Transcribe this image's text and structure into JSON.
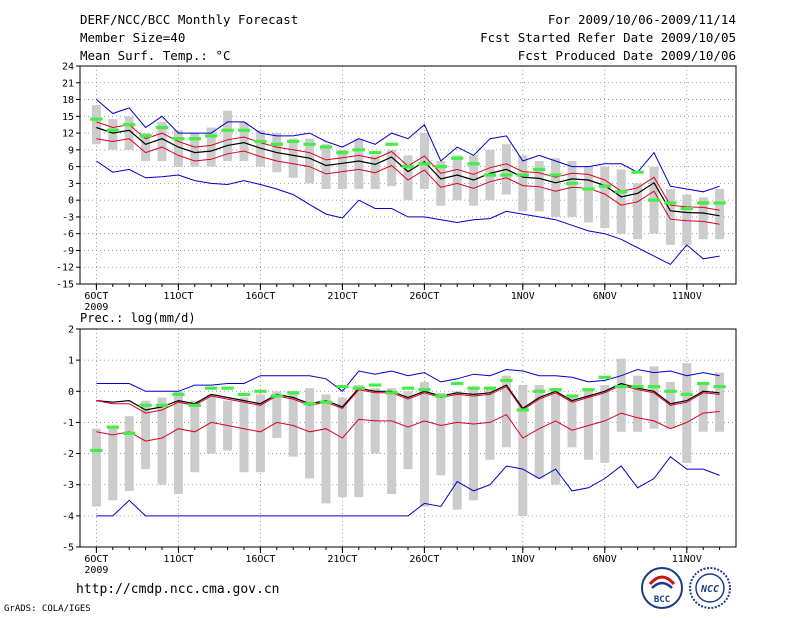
{
  "header": {
    "title": "DERF/NCC/BCC Monthly Forecast",
    "member": "Member Size=40",
    "variable": "Mean Surf. Temp.: °C",
    "period": "For 2009/10/06-2009/11/14",
    "started": "Fcst Started Refer Date 2009/10/05",
    "produced": "Fcst Produced Date 2009/10/06"
  },
  "footer": {
    "url": "http://cmdp.ncc.cma.gov.cn",
    "credit": "GrADS: COLA/IGES",
    "logo_left": "BCC",
    "logo_right": "NCC"
  },
  "colors": {
    "max_line": "#0000cc",
    "mean_line": "#000000",
    "spread_line": "#dd0022",
    "box": "#cccccc",
    "marker": "#44ee44",
    "grid": "#888888"
  },
  "chart_data": [
    {
      "type": "line",
      "name": "temperature",
      "ylabel": "Mean Surf. Temp.: °C",
      "ylim": [
        -15,
        24
      ],
      "yticks": [
        -15,
        -12,
        -9,
        -6,
        -3,
        0,
        3,
        6,
        9,
        12,
        15,
        18,
        21,
        24
      ],
      "xticks": [
        {
          "day": 0,
          "label": "6OCT"
        },
        {
          "day": 5,
          "label": "11OCT"
        },
        {
          "day": 10,
          "label": "16OCT"
        },
        {
          "day": 15,
          "label": "21OCT"
        },
        {
          "day": 20,
          "label": "26OCT"
        },
        {
          "day": 26,
          "label": "1NOV"
        },
        {
          "day": 31,
          "label": "6NOV"
        },
        {
          "day": 36,
          "label": "11NOV"
        }
      ],
      "year_label": "2009",
      "days": 39,
      "series": [
        {
          "name": "max",
          "color": "#0000cc",
          "values": [
            18,
            15.5,
            16.5,
            13,
            15,
            12,
            12,
            12,
            14,
            14,
            12,
            11.5,
            11.5,
            12,
            10.5,
            9.5,
            11,
            10,
            12,
            11,
            13.5,
            7,
            9.5,
            8,
            11,
            11.5,
            7,
            8,
            7,
            6,
            6,
            6.5,
            6.5,
            5,
            8.5,
            2.5,
            2,
            1.5,
            2.5
          ]
        },
        {
          "name": "upper",
          "color": "#dd0022",
          "values": [
            14,
            13,
            13.5,
            11,
            12,
            10.5,
            9.5,
            9.8,
            10.8,
            11.3,
            10.3,
            9.5,
            9,
            8.5,
            7.2,
            7.6,
            8,
            7.4,
            8.7,
            6.1,
            7.9,
            4.8,
            5.5,
            4.6,
            5.8,
            6.5,
            5.1,
            4.9,
            4.1,
            4.8,
            4.6,
            3.6,
            1.6,
            2.2,
            4.1,
            -0.9,
            -1.2,
            -1.3,
            -1.8
          ]
        },
        {
          "name": "mean",
          "color": "#000000",
          "values": [
            13,
            12,
            12.5,
            10,
            11,
            9.5,
            8.5,
            8.8,
            9.8,
            10.3,
            9.3,
            8.5,
            8,
            7.5,
            6.2,
            6.6,
            7,
            6.4,
            7.7,
            5.1,
            6.9,
            3.8,
            4.5,
            3.6,
            4.8,
            5.5,
            4.1,
            3.9,
            3.1,
            3.8,
            3.6,
            2.6,
            0.6,
            1.2,
            3.1,
            -1.9,
            -2.2,
            -2.3,
            -2.8
          ]
        },
        {
          "name": "lower",
          "color": "#dd0022",
          "values": [
            11,
            10.5,
            11,
            8.5,
            9.5,
            8,
            7,
            7.3,
            8.3,
            8.8,
            7.8,
            7,
            6.5,
            6,
            4.7,
            5.1,
            5.5,
            4.9,
            6.2,
            3.6,
            5.4,
            2.3,
            3,
            2.1,
            3.3,
            4,
            2.6,
            2.4,
            1.6,
            2.3,
            2.1,
            1.1,
            -0.9,
            -0.3,
            1.6,
            -3.4,
            -3.7,
            -3.8,
            -4.3
          ]
        },
        {
          "name": "min",
          "color": "#0000cc",
          "values": [
            7,
            5,
            5.5,
            4,
            4.2,
            4.5,
            3.5,
            3,
            2.8,
            3.5,
            2.8,
            2,
            1,
            -0.8,
            -2.5,
            -3.2,
            0,
            -1.5,
            -1.5,
            -3,
            -3,
            -3.5,
            -4,
            -3.5,
            -3.3,
            -2,
            -2.5,
            -3,
            -3.5,
            -4.5,
            -5.5,
            -6,
            -7,
            -8.5,
            -10,
            -11.5,
            -8,
            -10.5,
            -10
          ]
        }
      ],
      "boxes": {
        "top": [
          17,
          14.5,
          15,
          12,
          14,
          12.5,
          12,
          13,
          16,
          14,
          12.5,
          12,
          11,
          11,
          10,
          9,
          11,
          8,
          9,
          8,
          12,
          7,
          8,
          8,
          9,
          10,
          8,
          7,
          7.5,
          7,
          6,
          6,
          5.5,
          3,
          6,
          2,
          1,
          0.5,
          2
        ],
        "bottom": [
          10,
          9,
          9,
          7,
          7,
          6,
          6,
          6,
          7,
          7,
          6,
          5,
          4,
          3,
          2,
          2,
          2,
          2,
          2.5,
          0,
          2,
          -1,
          0,
          -1,
          0,
          1,
          -2,
          -2,
          -3,
          -3,
          -4,
          -5,
          -6,
          -7,
          -6,
          -8,
          -8,
          -7,
          -7
        ]
      },
      "markers": [
        14.5,
        12.5,
        13.5,
        11.5,
        13,
        11,
        11,
        11.5,
        12.5,
        12.5,
        10.5,
        10,
        10.5,
        10,
        9.5,
        8.5,
        9,
        8.5,
        10,
        6,
        6.5,
        6,
        7.5,
        6.5,
        4.5,
        4.5,
        4.5,
        5.5,
        4.5,
        3,
        2,
        2.5,
        1.5,
        5,
        0,
        -0.5,
        -1.5,
        -0.5,
        -0.5
      ]
    },
    {
      "type": "line",
      "name": "precipitation",
      "ylabel": "Prec.: log(mm/d)",
      "ylim": [
        -5,
        2
      ],
      "yticks": [
        -5,
        -4,
        -3,
        -2,
        -1,
        0,
        1,
        2
      ],
      "xticks": [
        {
          "day": 0,
          "label": "6OCT"
        },
        {
          "day": 5,
          "label": "11OCT"
        },
        {
          "day": 10,
          "label": "16OCT"
        },
        {
          "day": 15,
          "label": "21OCT"
        },
        {
          "day": 20,
          "label": "26OCT"
        },
        {
          "day": 26,
          "label": "1NOV"
        },
        {
          "day": 31,
          "label": "6NOV"
        },
        {
          "day": 36,
          "label": "11NOV"
        }
      ],
      "year_label": "2009",
      "days": 39,
      "series": [
        {
          "name": "max",
          "color": "#0000cc",
          "values": [
            0.25,
            0.25,
            0.25,
            0,
            0,
            0,
            0.2,
            0.2,
            0.25,
            0.25,
            0.5,
            0.5,
            0.5,
            0.5,
            0.4,
            0,
            0.65,
            0.55,
            0.65,
            0.5,
            0.6,
            0.3,
            0.4,
            0.55,
            0.5,
            0.7,
            0.65,
            0.5,
            0.5,
            0.45,
            0.3,
            0.35,
            0.5,
            0.7,
            0.6,
            0.65,
            0.5,
            0.6,
            0.5
          ]
        },
        {
          "name": "mean",
          "color": "#000000",
          "values": [
            -0.3,
            -0.35,
            -0.3,
            -0.6,
            -0.5,
            -0.3,
            -0.4,
            -0.1,
            -0.2,
            -0.3,
            -0.4,
            -0.1,
            -0.2,
            -0.4,
            -0.3,
            -0.5,
            0.1,
            0,
            0,
            -0.2,
            0,
            -0.15,
            -0.05,
            -0.1,
            -0.05,
            0.2,
            -0.55,
            -0.2,
            0,
            -0.3,
            -0.15,
            0,
            0.25,
            0.1,
            0,
            -0.4,
            -0.3,
            0,
            -0.05
          ]
        },
        {
          "name": "red_upper",
          "color": "#dd0022",
          "values": [
            -0.3,
            -0.4,
            -0.4,
            -0.7,
            -0.6,
            -0.35,
            -0.45,
            -0.15,
            -0.25,
            -0.35,
            -0.45,
            -0.15,
            -0.25,
            -0.45,
            -0.35,
            -0.55,
            0.05,
            -0.05,
            -0.05,
            -0.25,
            -0.05,
            -0.2,
            -0.1,
            -0.15,
            -0.1,
            0.15,
            -0.6,
            -0.25,
            -0.05,
            -0.35,
            -0.2,
            -0.05,
            0.2,
            0.05,
            -0.05,
            -0.45,
            -0.35,
            -0.05,
            -0.1
          ]
        },
        {
          "name": "red_lower",
          "color": "#dd0022",
          "values": [
            -1.3,
            -1.4,
            -1.3,
            -1.6,
            -1.5,
            -1.2,
            -1.3,
            -1.0,
            -1.1,
            -1.2,
            -1.3,
            -1.0,
            -1.1,
            -1.3,
            -1.2,
            -1.5,
            -0.9,
            -0.95,
            -0.95,
            -1.15,
            -0.95,
            -1.1,
            -1.0,
            -1.05,
            -1.0,
            -0.75,
            -1.5,
            -1.2,
            -0.95,
            -1.25,
            -1.1,
            -0.95,
            -0.7,
            -0.85,
            -0.95,
            -1.2,
            -1.0,
            -0.7,
            -0.65
          ]
        },
        {
          "name": "min",
          "color": "#0000cc",
          "values": [
            -4,
            -4,
            -3.5,
            -4,
            -4,
            -4,
            -4,
            -4,
            -4,
            -4,
            -4,
            -4,
            -4,
            -4,
            -4,
            -4,
            -4,
            -4,
            -4,
            -4,
            -3.6,
            -3.7,
            -2.9,
            -3.2,
            -3.0,
            -2.4,
            -2.5,
            -2.8,
            -2.5,
            -3.2,
            -3.1,
            -2.8,
            -2.4,
            -3.1,
            -2.8,
            -2.1,
            -2.5,
            -2.5,
            -2.7
          ]
        }
      ],
      "boxes": {
        "top": [
          -1.2,
          -1.1,
          -0.8,
          -0.3,
          -0.2,
          0,
          -0.3,
          -0.1,
          -0.3,
          -0.2,
          -0.1,
          0,
          0,
          0.1,
          -0.1,
          -0.2,
          0.2,
          0.1,
          0.1,
          0,
          0.3,
          -0.05,
          0,
          0.1,
          0.15,
          0.5,
          0.2,
          0.2,
          0.1,
          -0.2,
          0,
          0.2,
          1.05,
          0.5,
          0.8,
          0.3,
          0.9,
          0.2,
          0.6
        ],
        "bottom": [
          -3.7,
          -3.5,
          -3.2,
          -2.5,
          -3.0,
          -3.3,
          -2.6,
          -2.0,
          -1.9,
          -2.6,
          -2.6,
          -1.5,
          -2.1,
          -2.8,
          -3.6,
          -3.4,
          -3.4,
          -2.0,
          -3.3,
          -2.5,
          -3.7,
          -2.7,
          -3.8,
          -3.5,
          -2.2,
          -1.8,
          -4.0,
          -2.8,
          -3.0,
          -1.8,
          -2.2,
          -2.3,
          -1.3,
          -1.3,
          -1.2,
          -1.2,
          -2.3,
          -1.3,
          -1.3
        ]
      },
      "markers": [
        -1.9,
        -1.15,
        -1.35,
        -0.45,
        -0.45,
        -0.1,
        -0.45,
        0.1,
        0.1,
        -0.1,
        0,
        -0.15,
        -0.05,
        -0.4,
        -0.35,
        0.15,
        0.1,
        0.2,
        -0.05,
        0.1,
        0.05,
        -0.15,
        0.25,
        0.1,
        0.1,
        0.35,
        -0.6,
        0,
        0.05,
        -0.15,
        0.05,
        0.45,
        0.15,
        0.15,
        0.15,
        0,
        -0.1,
        0.25,
        0.15
      ]
    }
  ]
}
